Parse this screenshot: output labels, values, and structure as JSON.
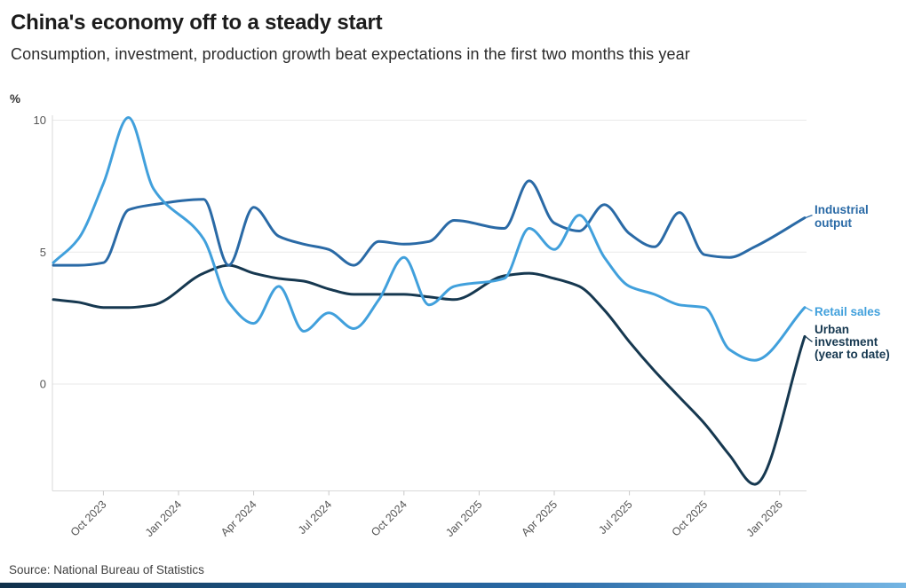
{
  "header": {
    "title": "China's economy off to a steady start",
    "subtitle": "Consumption, investment, production growth beat expectations in the first two months this year"
  },
  "footer": {
    "source": "Source: National Bureau of Statistics"
  },
  "chart_data": {
    "type": "line",
    "unit_label": "%",
    "y_ticks": [
      0,
      5,
      10
    ],
    "ylim": [
      -4.1,
      10.3
    ],
    "grid": "horizontal-only",
    "legend_position": "right-end-labels",
    "x_tick_labels": [
      "Oct 2023",
      "Jan 2024",
      "Apr 2024",
      "Jul 2024",
      "Oct 2024",
      "Jan 2025",
      "Apr 2025",
      "Jul 2025",
      "Oct 2025",
      "Jan 2026"
    ],
    "x_range": [
      "Aug 2023",
      "Feb 2026"
    ],
    "colors": {
      "industrial_output": "#2a6aa6",
      "retail_sales": "#41a0dc",
      "urban_investment": "#163850",
      "gridline": "#e9e9e9",
      "axis_line": "#d9d9d9",
      "tick_mark": "#c8c8c8",
      "axis_text": "#555555"
    },
    "series": [
      {
        "name": "Industrial output",
        "label_lines": [
          "Industrial",
          "output"
        ],
        "color": "#2a6aa6",
        "points": [
          {
            "date": "Aug 2023",
            "value": 4.5
          },
          {
            "date": "Sep 2023",
            "value": 4.5
          },
          {
            "date": "Oct 2023",
            "value": 4.6
          },
          {
            "date": "Nov 2023",
            "value": 6.6
          },
          {
            "date": "Dec 2023",
            "value": 6.8
          },
          {
            "date": "Feb 2024",
            "value": 7.0
          },
          {
            "date": "Mar 2024",
            "value": 4.5
          },
          {
            "date": "Apr 2024",
            "value": 6.7
          },
          {
            "date": "May 2024",
            "value": 5.6
          },
          {
            "date": "Jun 2024",
            "value": 5.3
          },
          {
            "date": "Jul 2024",
            "value": 5.1
          },
          {
            "date": "Aug 2024",
            "value": 4.5
          },
          {
            "date": "Sep 2024",
            "value": 5.4
          },
          {
            "date": "Oct 2024",
            "value": 5.3
          },
          {
            "date": "Nov 2024",
            "value": 5.4
          },
          {
            "date": "Dec 2024",
            "value": 6.2
          },
          {
            "date": "Feb 2025",
            "value": 5.9
          },
          {
            "date": "Mar 2025",
            "value": 7.7
          },
          {
            "date": "Apr 2025",
            "value": 6.1
          },
          {
            "date": "May 2025",
            "value": 5.8
          },
          {
            "date": "Jun 2025",
            "value": 6.8
          },
          {
            "date": "Jul 2025",
            "value": 5.7
          },
          {
            "date": "Aug 2025",
            "value": 5.2
          },
          {
            "date": "Sep 2025",
            "value": 6.5
          },
          {
            "date": "Oct 2025",
            "value": 4.9
          },
          {
            "date": "Nov 2025",
            "value": 4.8
          },
          {
            "date": "Dec 2025",
            "value": 5.2
          },
          {
            "date": "Feb 2026",
            "value": 6.3
          }
        ]
      },
      {
        "name": "Retail sales",
        "label_lines": [
          "Retail sales"
        ],
        "color": "#41a0dc",
        "points": [
          {
            "date": "Aug 2023",
            "value": 4.6
          },
          {
            "date": "Sep 2023",
            "value": 5.5
          },
          {
            "date": "Oct 2023",
            "value": 7.6
          },
          {
            "date": "Nov 2023",
            "value": 10.1
          },
          {
            "date": "Dec 2023",
            "value": 7.4
          },
          {
            "date": "Feb 2024",
            "value": 5.5
          },
          {
            "date": "Mar 2024",
            "value": 3.1
          },
          {
            "date": "Apr 2024",
            "value": 2.3
          },
          {
            "date": "May 2024",
            "value": 3.7
          },
          {
            "date": "Jun 2024",
            "value": 2.0
          },
          {
            "date": "Jul 2024",
            "value": 2.7
          },
          {
            "date": "Aug 2024",
            "value": 2.1
          },
          {
            "date": "Sep 2024",
            "value": 3.2
          },
          {
            "date": "Oct 2024",
            "value": 4.8
          },
          {
            "date": "Nov 2024",
            "value": 3.0
          },
          {
            "date": "Dec 2024",
            "value": 3.7
          },
          {
            "date": "Feb 2025",
            "value": 4.0
          },
          {
            "date": "Mar 2025",
            "value": 5.9
          },
          {
            "date": "Apr 2025",
            "value": 5.1
          },
          {
            "date": "May 2025",
            "value": 6.4
          },
          {
            "date": "Jun 2025",
            "value": 4.8
          },
          {
            "date": "Jul 2025",
            "value": 3.7
          },
          {
            "date": "Aug 2025",
            "value": 3.4
          },
          {
            "date": "Sep 2025",
            "value": 3.0
          },
          {
            "date": "Oct 2025",
            "value": 2.9
          },
          {
            "date": "Nov 2025",
            "value": 1.3
          },
          {
            "date": "Dec 2025",
            "value": 0.9
          },
          {
            "date": "Feb 2026",
            "value": 2.9
          }
        ]
      },
      {
        "name": "Urban investment (year to date)",
        "label_lines": [
          "Urban",
          "investment",
          "(year to date)"
        ],
        "color": "#163850",
        "points": [
          {
            "date": "Aug 2023",
            "value": 3.2
          },
          {
            "date": "Sep 2023",
            "value": 3.1
          },
          {
            "date": "Oct 2023",
            "value": 2.9
          },
          {
            "date": "Nov 2023",
            "value": 2.9
          },
          {
            "date": "Dec 2023",
            "value": 3.0
          },
          {
            "date": "Feb 2024",
            "value": 4.2
          },
          {
            "date": "Mar 2024",
            "value": 4.5
          },
          {
            "date": "Apr 2024",
            "value": 4.2
          },
          {
            "date": "May 2024",
            "value": 4.0
          },
          {
            "date": "Jun 2024",
            "value": 3.9
          },
          {
            "date": "Jul 2024",
            "value": 3.6
          },
          {
            "date": "Aug 2024",
            "value": 3.4
          },
          {
            "date": "Sep 2024",
            "value": 3.4
          },
          {
            "date": "Oct 2024",
            "value": 3.4
          },
          {
            "date": "Nov 2024",
            "value": 3.3
          },
          {
            "date": "Dec 2024",
            "value": 3.2
          },
          {
            "date": "Feb 2025",
            "value": 4.1
          },
          {
            "date": "Mar 2025",
            "value": 4.2
          },
          {
            "date": "Apr 2025",
            "value": 4.0
          },
          {
            "date": "May 2025",
            "value": 3.7
          },
          {
            "date": "Jun 2025",
            "value": 2.8
          },
          {
            "date": "Jul 2025",
            "value": 1.6
          },
          {
            "date": "Aug 2025",
            "value": 0.5
          },
          {
            "date": "Sep 2025",
            "value": -0.5
          },
          {
            "date": "Oct 2025",
            "value": -1.5
          },
          {
            "date": "Nov 2025",
            "value": -2.7
          },
          {
            "date": "Dec 2025",
            "value": -3.8
          },
          {
            "date": "Feb 2026",
            "value": 1.8
          }
        ]
      }
    ]
  }
}
